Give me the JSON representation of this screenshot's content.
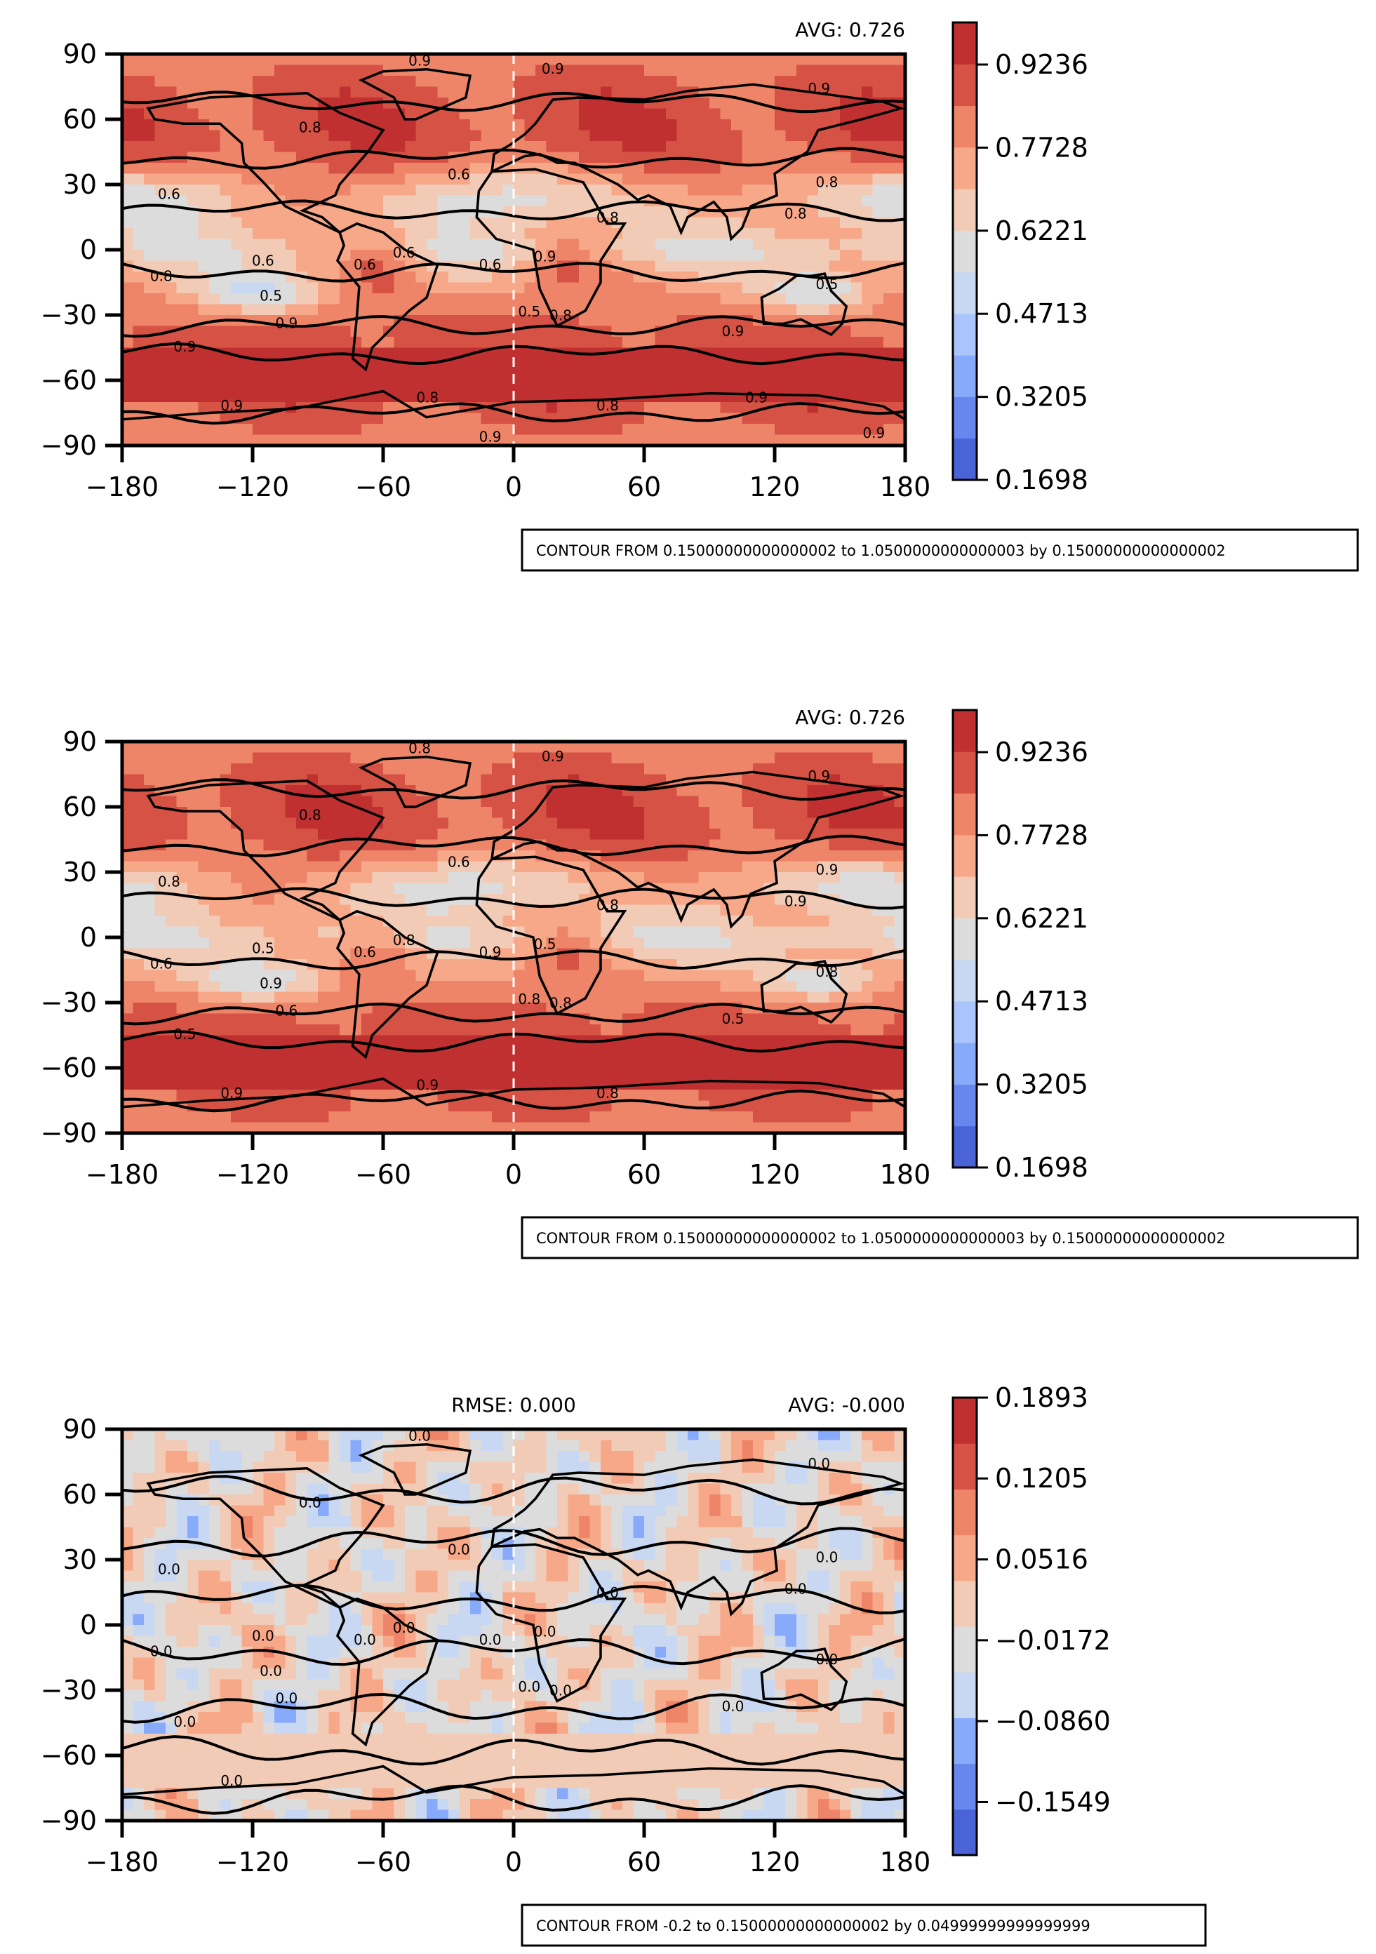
{
  "chart_data": [
    {
      "type": "heatmap",
      "subtype": "filled-contour world map",
      "title": "",
      "xlabel": "",
      "ylabel": "",
      "xlim": [
        -180,
        180
      ],
      "ylim": [
        -90,
        90
      ],
      "xticks": [
        -180,
        -120,
        -60,
        0,
        60,
        120,
        180
      ],
      "yticks": [
        90,
        60,
        30,
        0,
        -30,
        -60,
        -90
      ],
      "stats": {
        "avg": "AVG: 0.726"
      },
      "colorbar": {
        "min": 0.1698,
        "max": 1.0,
        "ticks": [
          0.9236,
          0.7728,
          0.6221,
          0.4713,
          0.3205,
          0.1698
        ],
        "tick_labels": [
          "0.9236",
          "0.7728",
          "0.6221",
          "0.4713",
          "0.3205",
          "0.1698"
        ],
        "colors": [
          "#4a63d6",
          "#6688ee",
          "#88aafb",
          "#a9c5fc",
          "#c8d7f2",
          "#dcdcdc",
          "#f2cbb7",
          "#f6a889",
          "#ee8468",
          "#d65244",
          "#c03030"
        ]
      },
      "contour_levels": [
        0.5,
        0.6,
        0.8,
        0.9
      ],
      "contour_labels_shown": [
        "0.9",
        "0.9",
        "0.8",
        "0.6",
        "0.6",
        "0.8",
        "0.6",
        "0.6",
        "0.5",
        "0.9",
        "0.8",
        "0.6",
        "0.8",
        "0.9",
        "0.5",
        "0.9",
        "0.6",
        "0.8",
        "0.9",
        "0.5",
        "0.8",
        "0.9",
        "0.9",
        "0.8",
        "0.8",
        "0.9",
        "0.9",
        "0.9"
      ],
      "note": "CONTOUR FROM 0.15000000000000002 to 1.0500000000000003 by 0.15000000000000002"
    },
    {
      "type": "heatmap",
      "subtype": "filled-contour world map",
      "title": "",
      "xlabel": "",
      "ylabel": "",
      "xlim": [
        -180,
        180
      ],
      "ylim": [
        -90,
        90
      ],
      "xticks": [
        -180,
        -120,
        -60,
        0,
        60,
        120,
        180
      ],
      "yticks": [
        90,
        60,
        30,
        0,
        -30,
        -60,
        -90
      ],
      "stats": {
        "avg": "AVG: 0.726"
      },
      "colorbar": {
        "min": 0.1698,
        "max": 1.0,
        "ticks": [
          0.9236,
          0.7728,
          0.6221,
          0.4713,
          0.3205,
          0.1698
        ],
        "tick_labels": [
          "0.9236",
          "0.7728",
          "0.6221",
          "0.4713",
          "0.3205",
          "0.1698"
        ],
        "colors": [
          "#4a63d6",
          "#6688ee",
          "#88aafb",
          "#a9c5fc",
          "#c8d7f2",
          "#dcdcdc",
          "#f2cbb7",
          "#f6a889",
          "#ee8468",
          "#d65244",
          "#c03030"
        ]
      },
      "contour_levels": [
        0.5,
        0.6,
        0.8,
        0.9
      ],
      "contour_labels_shown": [
        "0.8",
        "0.9",
        "0.8",
        "0.8",
        "0.6",
        "0.8",
        "0.5",
        "0.8",
        "0.9",
        "0.5",
        "0.6",
        "0.9",
        "0.8",
        "0.6",
        "0.8",
        "0.5",
        "0.6",
        "0.9",
        "0.5",
        "0.8",
        "0.9",
        "0.9",
        "0.9",
        "0.8",
        "0.9"
      ],
      "note": "CONTOUR FROM 0.15000000000000002 to 1.0500000000000003 by 0.15000000000000002"
    },
    {
      "type": "heatmap",
      "subtype": "filled-contour world map (difference)",
      "title": "",
      "xlabel": "",
      "ylabel": "",
      "xlim": [
        -180,
        180
      ],
      "ylim": [
        -90,
        90
      ],
      "xticks": [
        -180,
        -120,
        -60,
        0,
        60,
        120,
        180
      ],
      "yticks": [
        90,
        60,
        30,
        0,
        -30,
        -60,
        -90
      ],
      "stats": {
        "rmse": "RMSE: 0.000",
        "avg": "AVG: -0.000"
      },
      "colorbar": {
        "min": -0.2,
        "max": 0.1893,
        "ticks": [
          0.1893,
          0.1205,
          0.0516,
          -0.0172,
          -0.086,
          -0.1549
        ],
        "tick_labels": [
          "0.1893",
          "0.1205",
          "0.0516",
          "−0.0172",
          "−0.0860",
          "−0.1549"
        ],
        "colors": [
          "#4a63d6",
          "#6688ee",
          "#88aafb",
          "#c8d7f2",
          "#dcdcdc",
          "#f2cbb7",
          "#f6a889",
          "#ee8468",
          "#d65244",
          "#c03030"
        ]
      },
      "contour_levels": [
        0.0
      ],
      "contour_labels_shown": [
        "0.0",
        "0.0",
        "0.0",
        "0.0",
        "0.0",
        "0.0",
        "0.0",
        "0.0",
        "0.0",
        "0.0",
        "0.0",
        "0.0",
        "0.0",
        "0.0",
        "0.0",
        "0.0",
        "0.0",
        "0.0",
        "0.0",
        "0.0",
        "0.0",
        "0.0"
      ],
      "note": "CONTOUR FROM -0.2 to 0.15000000000000002 by 0.04999999999999999"
    }
  ]
}
